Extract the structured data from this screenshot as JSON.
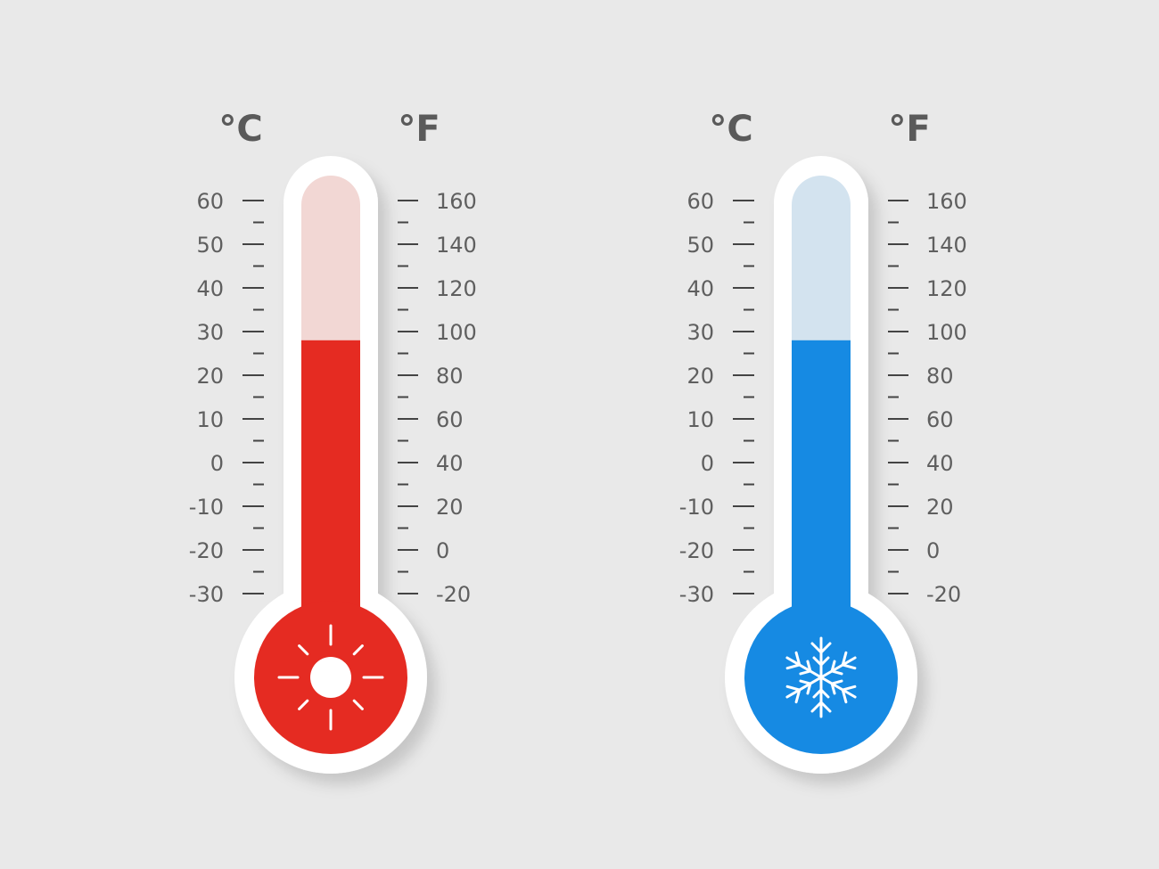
{
  "thermometers": [
    {
      "id": "hot",
      "celsius_unit": "°C",
      "fahrenheit_unit": "°F",
      "celsius_ticks": [
        "60",
        "50",
        "40",
        "30",
        "20",
        "10",
        "0",
        "-10",
        "-20",
        "-30"
      ],
      "fahrenheit_ticks": [
        "160",
        "140",
        "120",
        "100",
        "80",
        "60",
        "40",
        "20",
        "0",
        "-20"
      ],
      "celsius_range": [
        -30,
        60
      ],
      "reading_celsius": 28,
      "fill_color": "#e52b22",
      "empty_color": "#f2d7d4",
      "bulb_icon": "sun-icon"
    },
    {
      "id": "cold",
      "celsius_unit": "°C",
      "fahrenheit_unit": "°F",
      "celsius_ticks": [
        "60",
        "50",
        "40",
        "30",
        "20",
        "10",
        "0",
        "-10",
        "-20",
        "-30"
      ],
      "fahrenheit_ticks": [
        "160",
        "140",
        "120",
        "100",
        "80",
        "60",
        "40",
        "20",
        "0",
        "-20"
      ],
      "celsius_range": [
        -30,
        60
      ],
      "reading_celsius": 28,
      "fill_color": "#168ae3",
      "empty_color": "#d3e3ef",
      "bulb_icon": "snowflake-icon"
    }
  ]
}
